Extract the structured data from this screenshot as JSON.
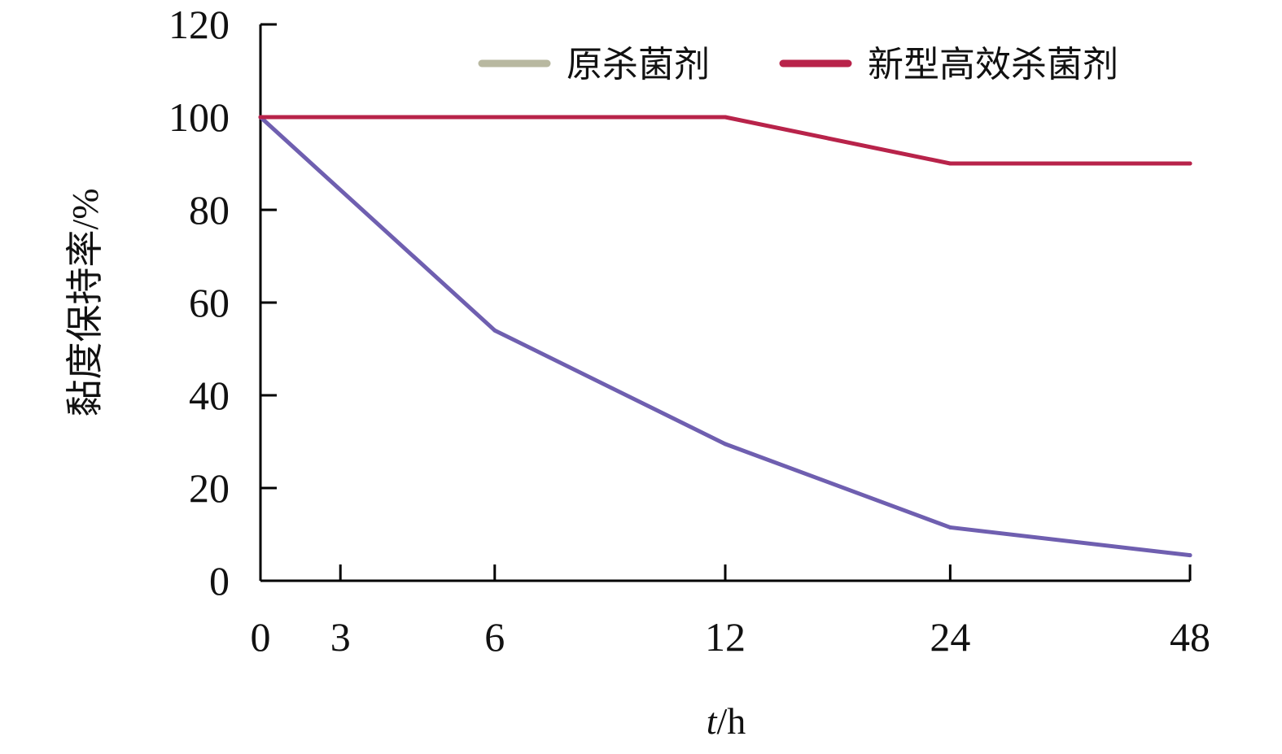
{
  "chart_data": {
    "type": "line",
    "categories": [
      "0",
      "3",
      "6",
      "12",
      "24",
      "48"
    ],
    "x_positions": [
      0,
      0.43,
      1.26,
      2.5,
      3.71,
      5
    ],
    "xlabel_italic": "t",
    "xlabel_rest": "/h",
    "ylabel": "黏度保持率/%",
    "ylim": [
      0,
      120
    ],
    "yticks": [
      "0",
      "20",
      "40",
      "60",
      "80",
      "100",
      "120"
    ],
    "grid": false,
    "legend_position": "top",
    "series": [
      {
        "name": "原杀菌剂",
        "color": "#6f5fb0",
        "legend_color": "#b8b8a0",
        "points": [
          {
            "x": 0,
            "y": 100
          },
          {
            "x": 1.26,
            "y": 54
          },
          {
            "x": 2.5,
            "y": 29.5
          },
          {
            "x": 3.71,
            "y": 11.5
          },
          {
            "x": 5,
            "y": 5.5
          }
        ]
      },
      {
        "name": "新型高效杀菌剂",
        "color": "#b8234a",
        "legend_color": "#b8234a",
        "points": [
          {
            "x": 0,
            "y": 100
          },
          {
            "x": 2.5,
            "y": 100
          },
          {
            "x": 3.71,
            "y": 90
          },
          {
            "x": 5,
            "y": 90
          }
        ]
      }
    ]
  }
}
